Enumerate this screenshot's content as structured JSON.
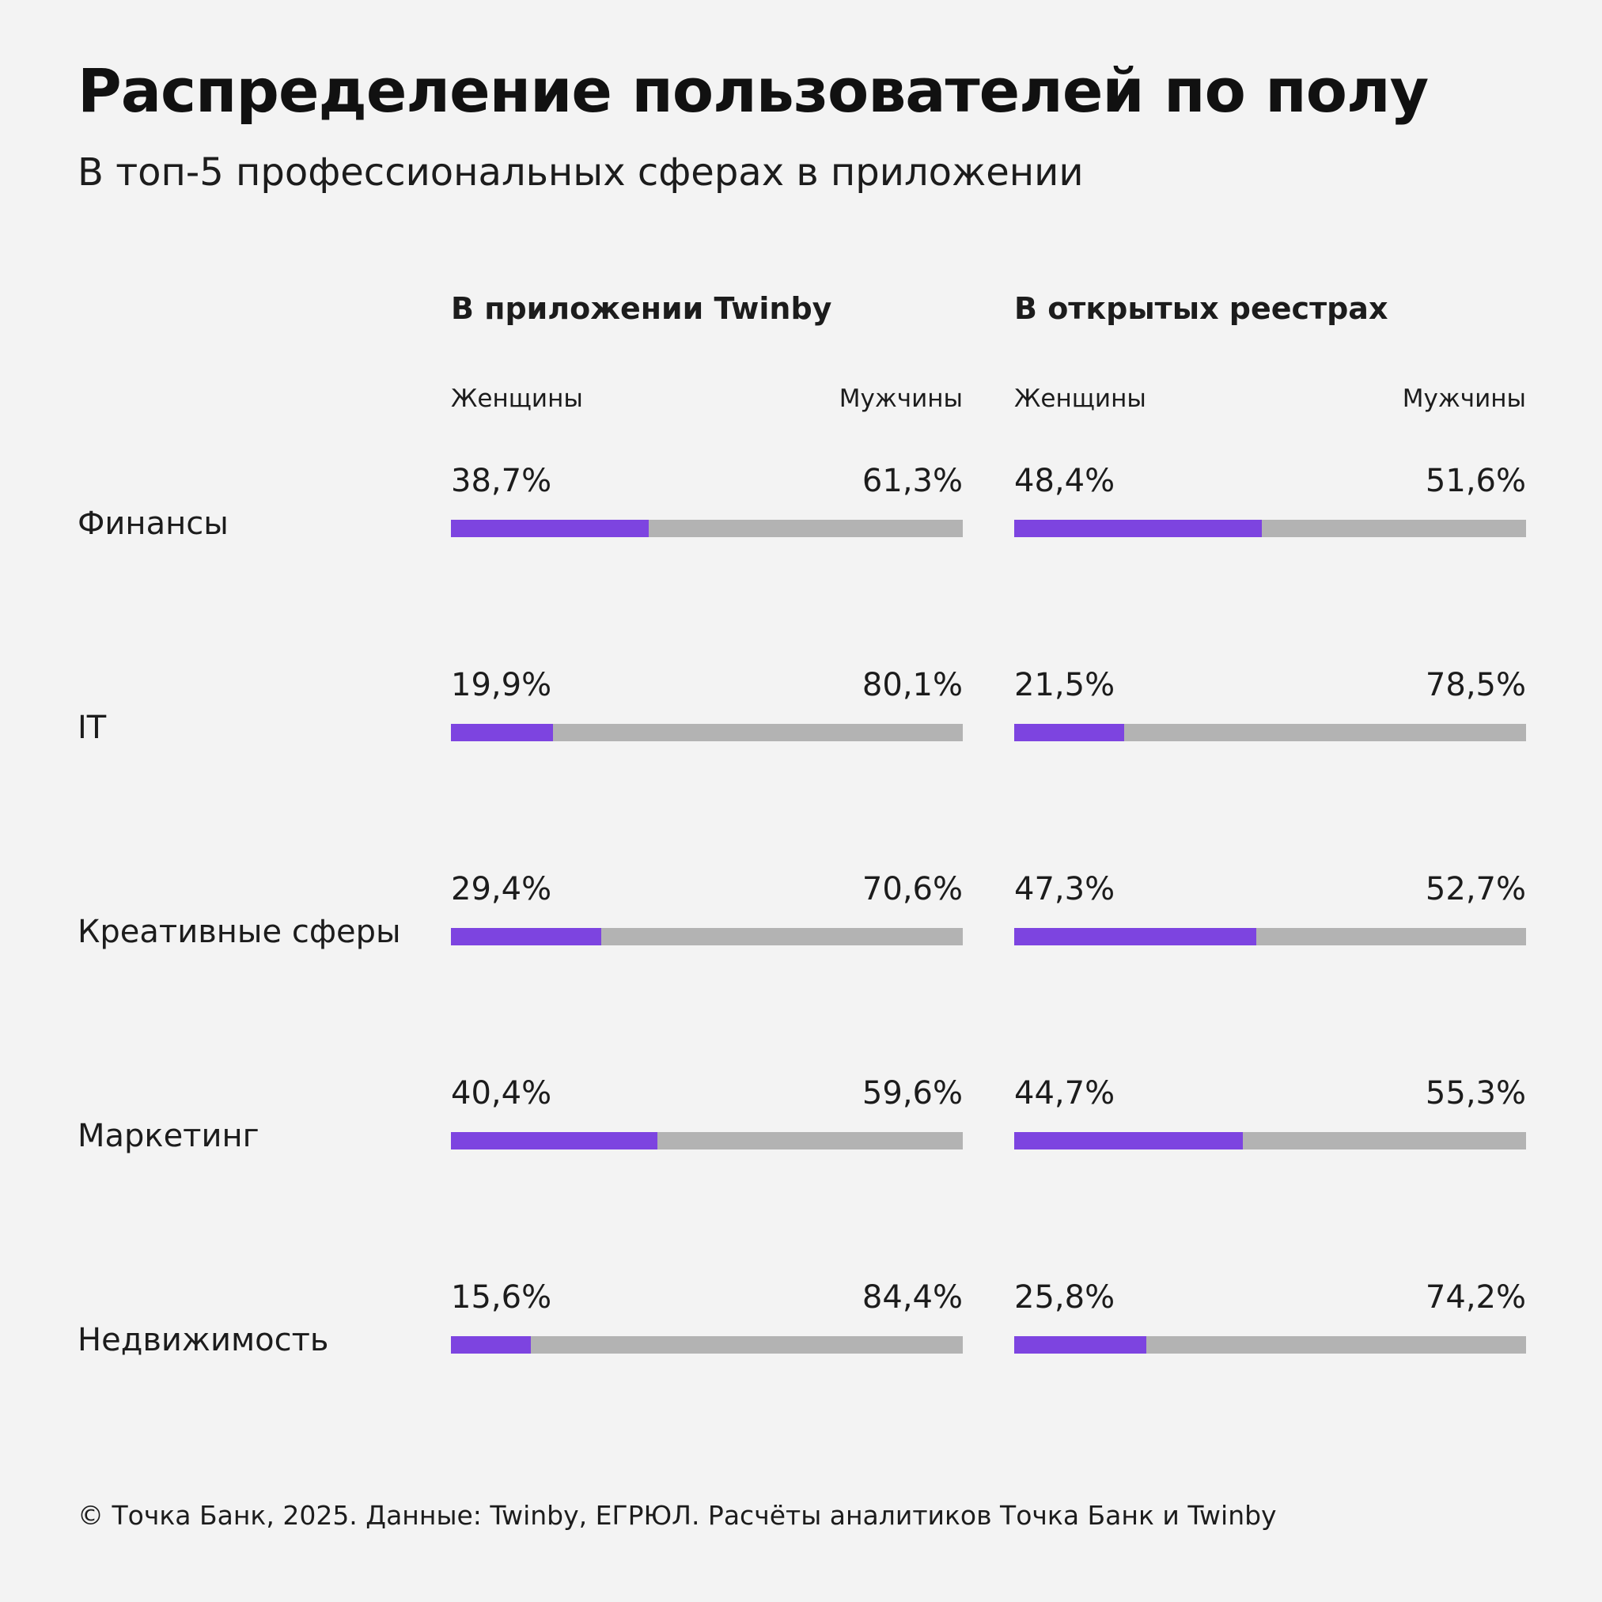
{
  "header": {
    "title": "Распределение пользователей по полу",
    "subtitle": "В топ-5 профессиональных сферах в приложении"
  },
  "chart_data": {
    "type": "bar",
    "orientation": "horizontal-stacked-100",
    "groups": [
      {
        "title": "В приложении Twinby",
        "left_label": "Женщины",
        "right_label": "Мужчины"
      },
      {
        "title": "В открытых реестрах",
        "left_label": "Женщины",
        "right_label": "Мужчины"
      }
    ],
    "categories": [
      "Финансы",
      "IT",
      "Креативные сферы",
      "Маркетинг",
      "Недвижимость"
    ],
    "series": [
      {
        "name": "Женщины",
        "color": "#7d44e0",
        "values": [
          [
            38.7,
            48.4
          ],
          [
            19.9,
            21.5
          ],
          [
            29.4,
            47.3
          ],
          [
            40.4,
            44.7
          ],
          [
            15.6,
            25.8
          ]
        ],
        "labels": [
          [
            "38,7%",
            "48,4%"
          ],
          [
            "19,9%",
            "21,5%"
          ],
          [
            "29,4%",
            "47,3%"
          ],
          [
            "40,4%",
            "44,7%"
          ],
          [
            "15,6%",
            "25,8%"
          ]
        ]
      },
      {
        "name": "Мужчины",
        "color": "#b3b3b3",
        "values": [
          [
            61.3,
            51.6
          ],
          [
            80.1,
            78.5
          ],
          [
            70.6,
            52.7
          ],
          [
            59.6,
            55.3
          ],
          [
            84.4,
            74.2
          ]
        ],
        "labels": [
          [
            "61,3%",
            "51,6%"
          ],
          [
            "80,1%",
            "78,5%"
          ],
          [
            "70,6%",
            "52,7%"
          ],
          [
            "59,6%",
            "55,3%"
          ],
          [
            "84,4%",
            "74,2%"
          ]
        ]
      }
    ],
    "xlim": [
      0,
      100
    ]
  },
  "footer": {
    "source": "© Точка Банк, 2025. Данные: Twinby, ЕГРЮЛ. Расчёты аналитиков Точка Банк и Twinby"
  }
}
